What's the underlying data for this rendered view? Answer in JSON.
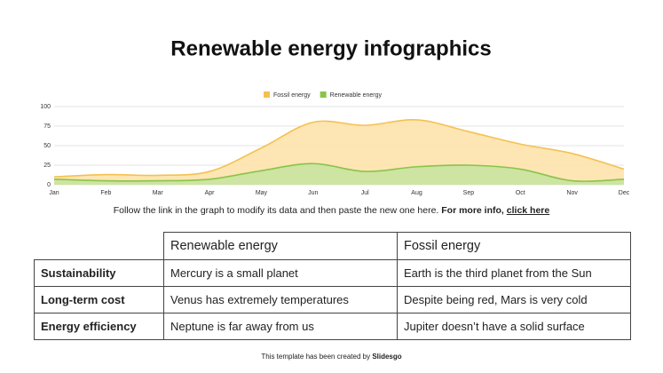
{
  "chart_data": {
    "type": "area",
    "title": "Renewable energy infographics",
    "categories": [
      "Jan",
      "Feb",
      "Mar",
      "Apr",
      "May",
      "Jun",
      "Jul",
      "Aug",
      "Sep",
      "Oct",
      "Nov",
      "Dec"
    ],
    "series": [
      {
        "name": "Fossil energy",
        "color": "#f4c150",
        "fill": "#fde3ab",
        "values": [
          10,
          13,
          12,
          17,
          47,
          80,
          76,
          83,
          68,
          52,
          40,
          20
        ]
      },
      {
        "name": "Renewable energy",
        "color": "#8bc34a",
        "fill": "#c8e3a0",
        "values": [
          7,
          5,
          5,
          7,
          18,
          27,
          17,
          23,
          25,
          20,
          5,
          7
        ]
      }
    ],
    "ylim": [
      0,
      100
    ],
    "yticks": [
      0,
      25,
      50,
      75,
      100
    ],
    "grid": true,
    "legend": "top"
  },
  "caption": {
    "text": "Follow the link in the graph to modify its data and then paste the new one here.",
    "more": "For more info,",
    "link": "click here"
  },
  "table": {
    "header": [
      "Renewable energy",
      "Fossil energy"
    ],
    "rows": [
      [
        "Sustainability",
        "Mercury is a small planet",
        "Earth is the third planet from the Sun"
      ],
      [
        "Long-term cost",
        "Venus has extremely temperatures",
        "Despite being red, Mars is very cold"
      ],
      [
        "Energy efficiency",
        "Neptune is far away from us",
        "Jupiter doesn’t have a solid surface"
      ]
    ]
  },
  "footer": {
    "text": "This template has been created by",
    "brand": "Slidesgo"
  }
}
